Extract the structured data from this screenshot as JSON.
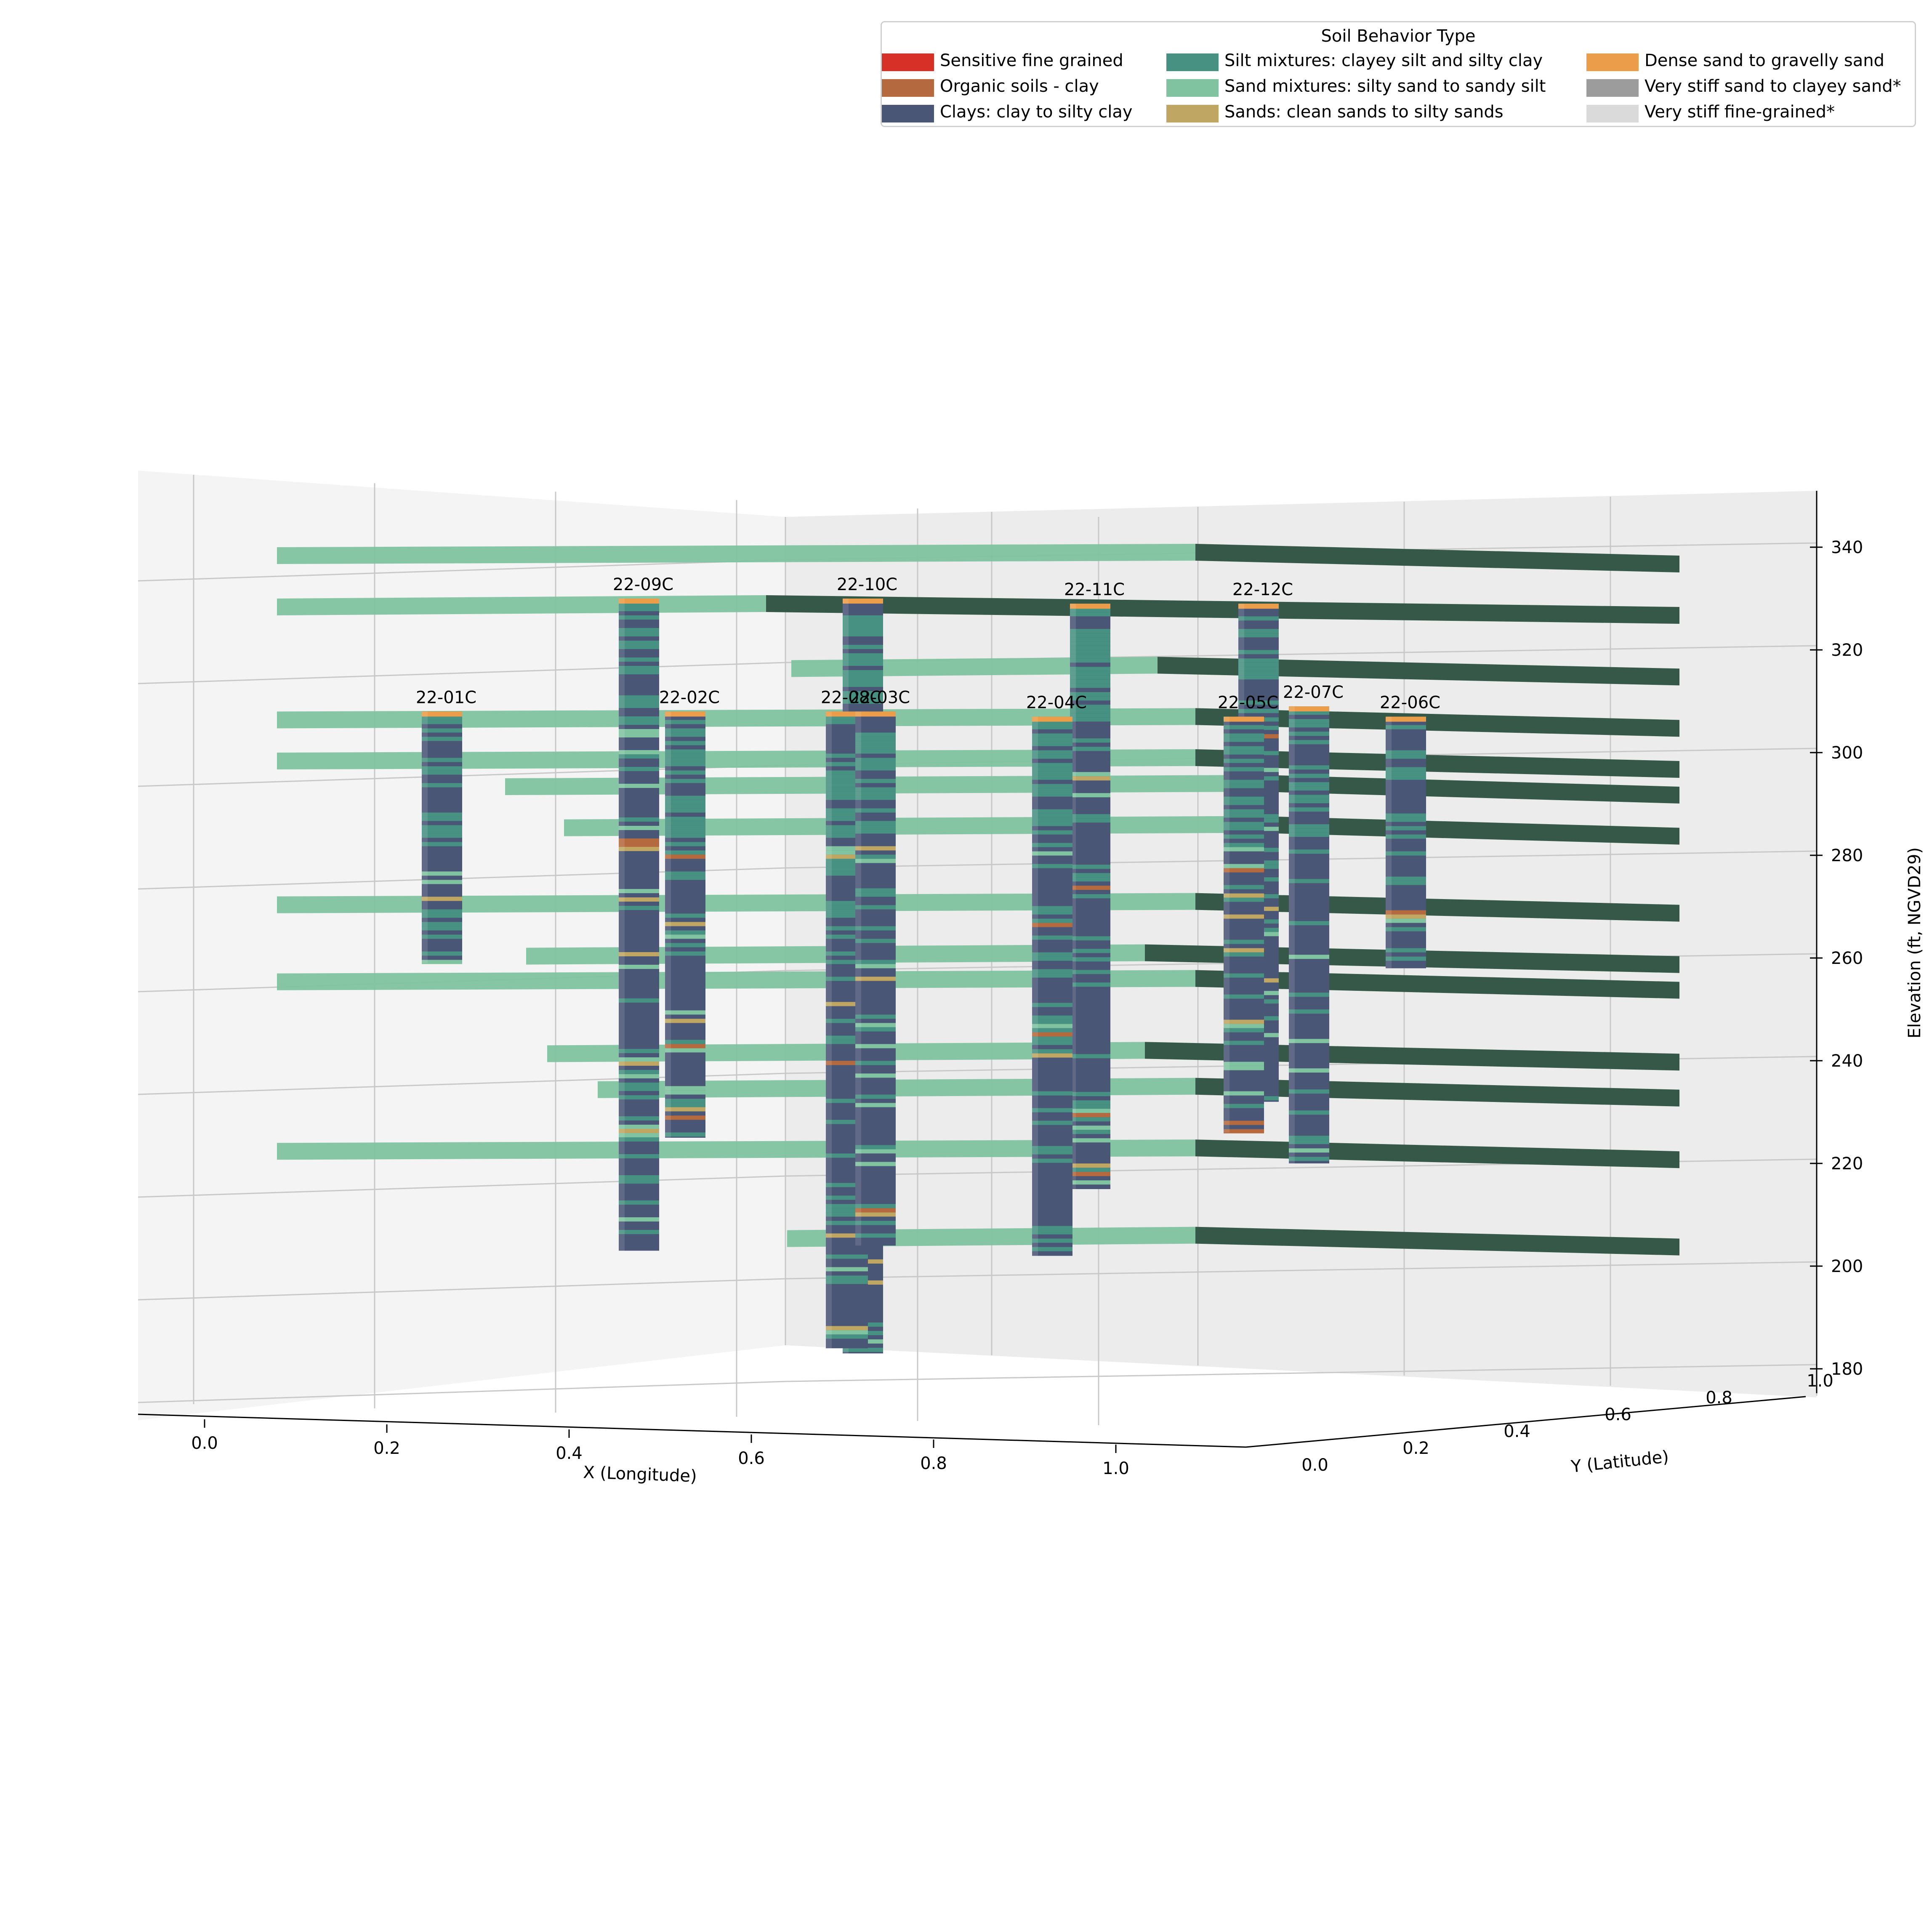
{
  "chart_data": {
    "type": "3d-voxel",
    "zlabel": "Elevation (ft, NGVD29)",
    "xlabel": "X (Longitude)",
    "ylabel": "Y (Latitude)",
    "xticks": [
      "0.0",
      "0.2",
      "0.4",
      "0.6",
      "0.8",
      "1.0"
    ],
    "yticks": [
      "0.0",
      "0.2",
      "0.4",
      "0.6",
      "0.8",
      "1.0"
    ],
    "zticks": [
      "180",
      "200",
      "220",
      "240",
      "260",
      "280",
      "300",
      "320",
      "340"
    ],
    "zlim": [
      175,
      351
    ],
    "legend": {
      "title": "Soil Behavior Type",
      "placement": "top-right",
      "entries": [
        {
          "label": "Sensitive fine grained",
          "color": "#d73027"
        },
        {
          "label": "Organic soils - clay",
          "color": "#b5693f"
        },
        {
          "label": "Clays: clay to silty clay",
          "color": "#4a5676"
        },
        {
          "label": "Silt mixtures: clayey silt and silty clay",
          "color": "#479182"
        },
        {
          "label": "Sand mixtures: silty sand to sandy silt",
          "color": "#7fc3a0"
        },
        {
          "label": "Sands: clean sands to silty sands",
          "color": "#bfa763"
        },
        {
          "label": "Dense sand to gravelly sand",
          "color": "#eb9d4a"
        },
        {
          "label": "Very stiff sand to clayey sand*",
          "color": "#9c9c9c"
        },
        {
          "label": "Very stiff fine-grained*",
          "color": "#dadada"
        }
      ]
    },
    "boreholes": [
      {
        "label": "22-09C",
        "x": 0.13,
        "y": 0.86,
        "top": 330,
        "bottom": 203
      },
      {
        "label": "22-10C",
        "x": 0.52,
        "y": 0.86,
        "top": 330,
        "bottom": 183
      },
      {
        "label": "22-11C",
        "x": 0.82,
        "y": 0.86,
        "top": 329,
        "bottom": 215
      },
      {
        "label": "22-12C",
        "x": 0.9,
        "y": 0.86,
        "top": 329,
        "bottom": 232
      },
      {
        "label": "22-01C",
        "x": 0.15,
        "y": 0.0,
        "top": 308,
        "bottom": 259
      },
      {
        "label": "22-02C",
        "x": 0.42,
        "y": 0.0,
        "top": 308,
        "bottom": 225
      },
      {
        "label": "22-08C",
        "x": 0.64,
        "y": 0.0,
        "top": 308,
        "bottom": 184
      },
      {
        "label": "22-03C",
        "x": 0.69,
        "y": 0.0,
        "top": 308,
        "bottom": 204
      },
      {
        "label": "22-04C",
        "x": 0.9,
        "y": 0.0,
        "top": 307,
        "bottom": 202
      },
      {
        "label": "22-05C",
        "x": 0.99,
        "y": 0.1,
        "top": 307,
        "bottom": 226
      },
      {
        "label": "22-07C",
        "x": 1.0,
        "y": 0.32,
        "top": 309,
        "bottom": 220
      },
      {
        "label": "22-06C",
        "x": 1.0,
        "y": 0.6,
        "top": 307,
        "bottom": 258
      }
    ],
    "layers": [
      {
        "elev": 340,
        "soil": "Sand mixtures: silty sand to sandy silt"
      },
      {
        "elev": 330,
        "soil": "Sand mixtures: silty sand to sandy silt"
      },
      {
        "elev": 318,
        "soil": "Sand mixtures: silty sand to sandy silt"
      },
      {
        "elev": 308,
        "soil": "Sand mixtures: silty sand to sandy silt"
      },
      {
        "elev": 300,
        "soil": "Sand mixtures: silty sand to sandy silt"
      },
      {
        "elev": 295,
        "soil": "Sand mixtures: silty sand to sandy silt"
      },
      {
        "elev": 287,
        "soil": "Sand mixtures: silty sand to sandy silt"
      },
      {
        "elev": 272,
        "soil": "Sand mixtures: silty sand to sandy silt"
      },
      {
        "elev": 262,
        "soil": "Sand mixtures: silty sand to sandy silt"
      },
      {
        "elev": 257,
        "soil": "Sand mixtures: silty sand to sandy silt"
      },
      {
        "elev": 243,
        "soil": "Sand mixtures: silty sand to sandy silt"
      },
      {
        "elev": 236,
        "soil": "Sand mixtures: silty sand to sandy silt"
      },
      {
        "elev": 224,
        "soil": "Sand mixtures: silty sand to sandy silt"
      },
      {
        "elev": 207,
        "soil": "Sand mixtures: silty sand to sandy silt"
      }
    ]
  }
}
